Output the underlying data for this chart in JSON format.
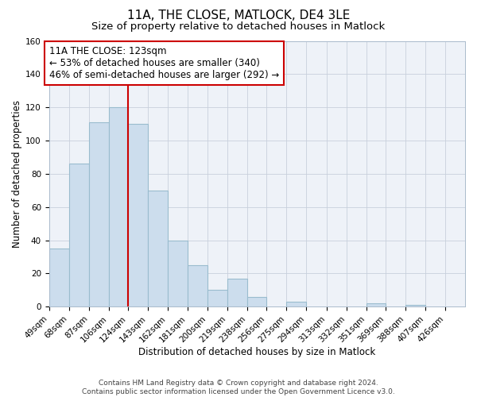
{
  "title": "11A, THE CLOSE, MATLOCK, DE4 3LE",
  "subtitle": "Size of property relative to detached houses in Matlock",
  "xlabel": "Distribution of detached houses by size in Matlock",
  "ylabel": "Number of detached properties",
  "footer_line1": "Contains HM Land Registry data © Crown copyright and database right 2024.",
  "footer_line2": "Contains public sector information licensed under the Open Government Licence v3.0.",
  "bin_labels": [
    "49sqm",
    "68sqm",
    "87sqm",
    "106sqm",
    "124sqm",
    "143sqm",
    "162sqm",
    "181sqm",
    "200sqm",
    "219sqm",
    "238sqm",
    "256sqm",
    "275sqm",
    "294sqm",
    "313sqm",
    "332sqm",
    "351sqm",
    "369sqm",
    "388sqm",
    "407sqm",
    "426sqm"
  ],
  "bin_edges": [
    49,
    68,
    87,
    106,
    124,
    143,
    162,
    181,
    200,
    219,
    238,
    256,
    275,
    294,
    313,
    332,
    351,
    369,
    388,
    407,
    426
  ],
  "bar_values": [
    35,
    86,
    111,
    120,
    110,
    70,
    40,
    25,
    10,
    17,
    6,
    0,
    3,
    0,
    0,
    0,
    2,
    0,
    1,
    0,
    0
  ],
  "bar_color": "#ccdded",
  "bar_edge_color": "#9abcce",
  "reference_line_x": 124,
  "reference_line_color": "#cc0000",
  "annotation_line1": "11A THE CLOSE: 123sqm",
  "annotation_line2": "← 53% of detached houses are smaller (340)",
  "annotation_line3": "46% of semi-detached houses are larger (292) →",
  "annotation_box_color": "#ffffff",
  "annotation_box_edge_color": "#cc0000",
  "ylim": [
    0,
    160
  ],
  "yticks": [
    0,
    20,
    40,
    60,
    80,
    100,
    120,
    140,
    160
  ],
  "background_color": "#ffffff",
  "plot_background_color": "#eef2f8",
  "grid_color": "#c8d0dc",
  "title_fontsize": 11,
  "subtitle_fontsize": 9.5,
  "axis_label_fontsize": 8.5,
  "tick_fontsize": 7.5,
  "annotation_fontsize": 8.5,
  "footer_fontsize": 6.5
}
